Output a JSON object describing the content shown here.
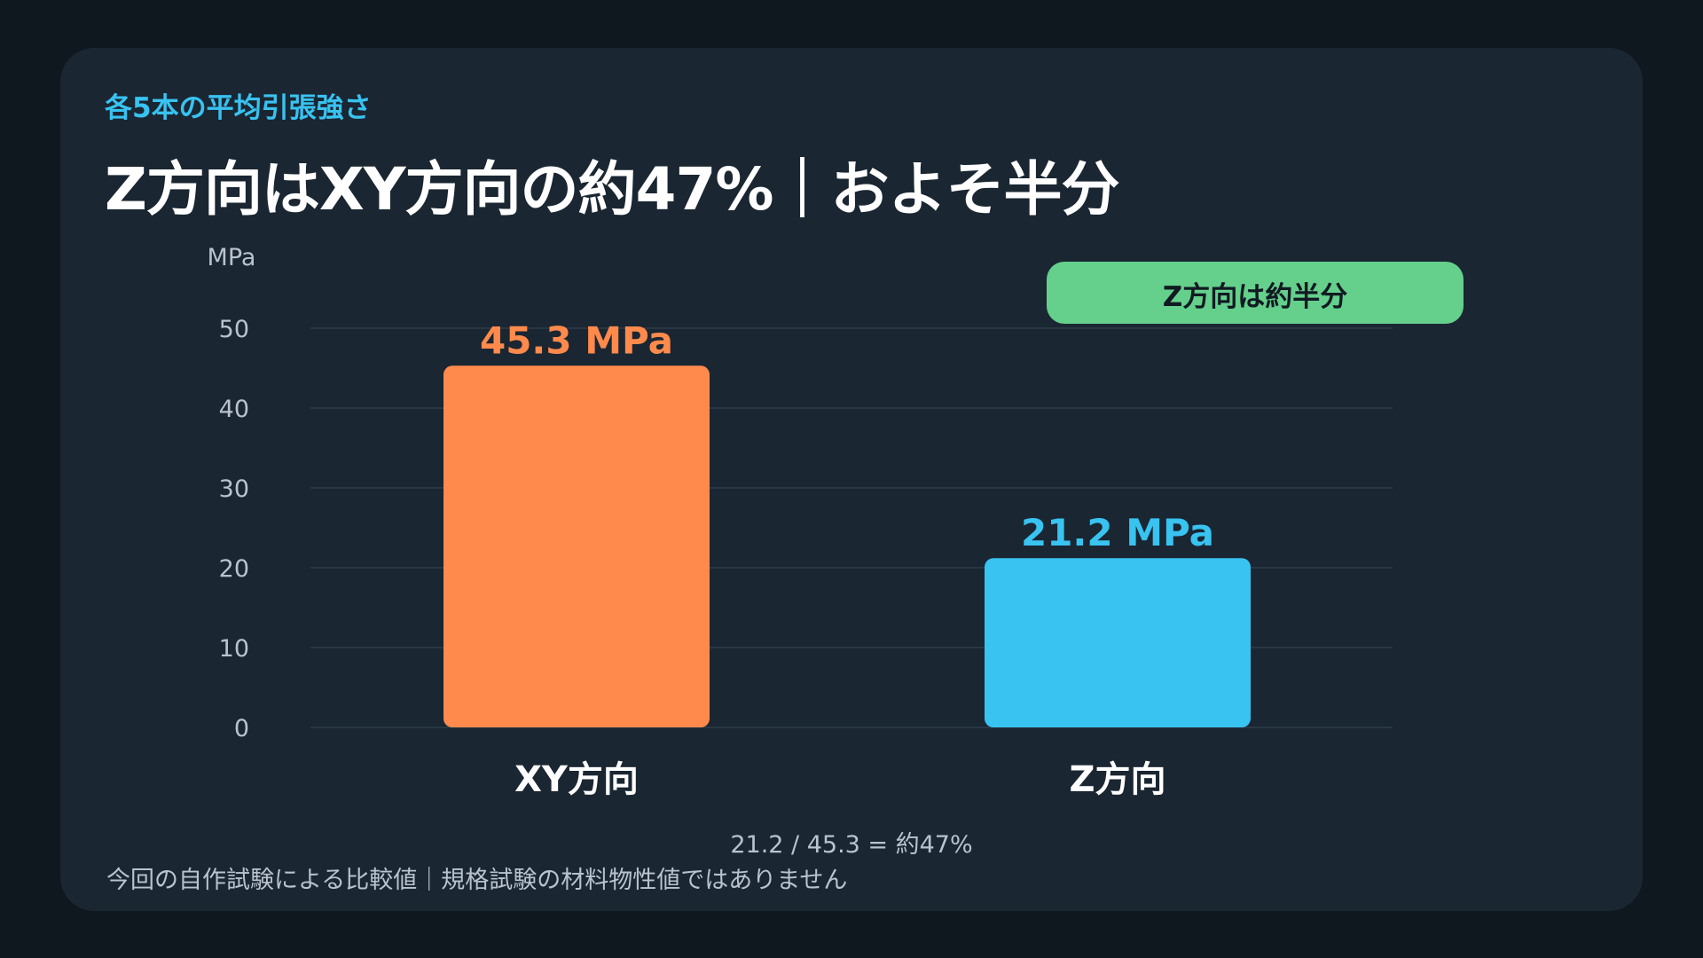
{
  "header": {
    "kicker": "各5本の平均引張強さ",
    "title": "Z方向はXY方向の約47%｜およそ半分"
  },
  "note": "21.2 / 45.3 = 約47%",
  "footer": "今回の自作試験による比較値｜規格試験の材料物性値ではありません",
  "chart_data": {
    "type": "bar",
    "categories": [
      "XY方向",
      "Z方向"
    ],
    "values": [
      45.3,
      21.2
    ],
    "value_labels": [
      "45.3 MPa",
      "21.2 MPa"
    ],
    "bar_colors": [
      "#ff8a4c",
      "#38c3f1"
    ],
    "ylabel": "MPa",
    "ylim": [
      0,
      50
    ],
    "yticks": [
      0,
      10,
      20,
      30,
      40,
      50
    ],
    "grid": true,
    "annotation": {
      "text": "Z方向は約半分",
      "background": "#64d08c"
    }
  },
  "colors": {
    "background": "#0f171f",
    "card": "#1a2632",
    "accent": "#38c3f1",
    "grid": "#2d3d4a",
    "axis_text": "#b8c3cd"
  }
}
